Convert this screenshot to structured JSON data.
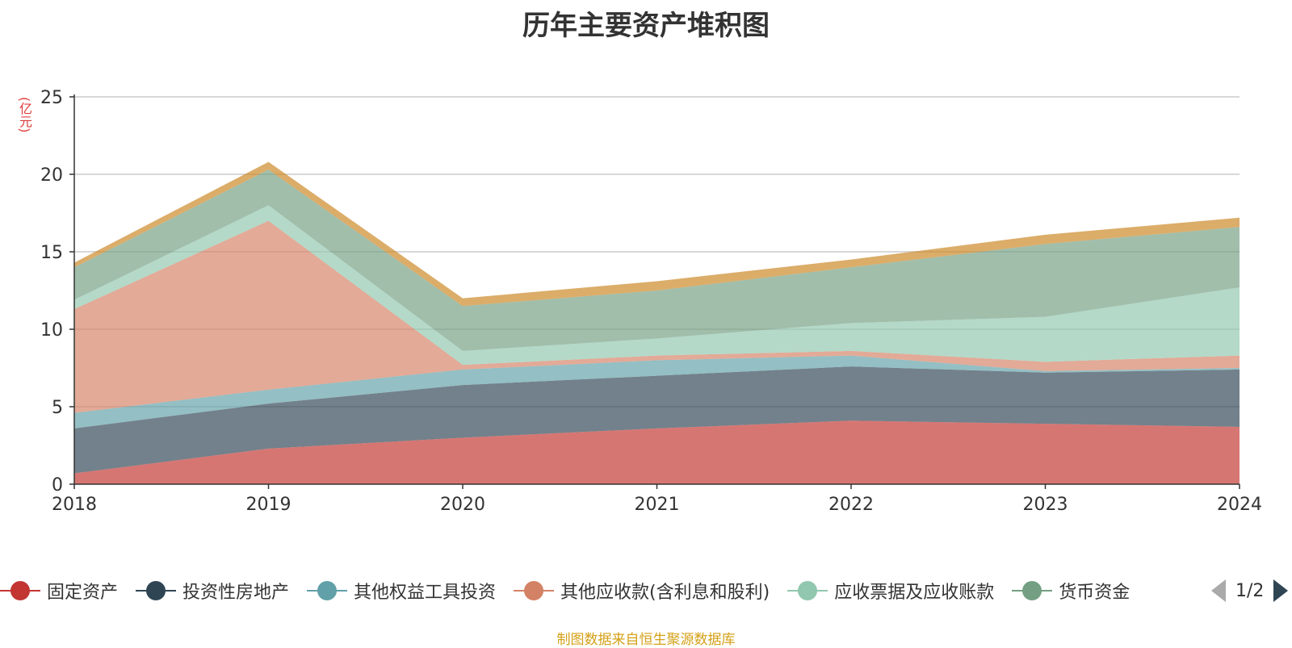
{
  "chart_data": {
    "type": "area",
    "stacked": true,
    "title": "历年主要资产堆积图",
    "unit_label": "(亿元)",
    "x": [
      "2018",
      "2019",
      "2020",
      "2021",
      "2022",
      "2023",
      "2024"
    ],
    "ylim": [
      0,
      25
    ],
    "yticks": [
      0,
      5,
      10,
      15,
      20,
      25
    ],
    "grid": true,
    "legend_position": "bottom",
    "series": [
      {
        "name": "固定资产",
        "color": "#c23531",
        "values": [
          0.7,
          2.3,
          3.0,
          3.6,
          4.1,
          3.9,
          3.7
        ]
      },
      {
        "name": "投资性房地产",
        "color": "#2f4554",
        "values": [
          2.9,
          2.9,
          3.4,
          3.4,
          3.5,
          3.3,
          3.7
        ]
      },
      {
        "name": "其他权益工具投资",
        "color": "#61a0a8",
        "values": [
          1.0,
          0.9,
          1.0,
          1.0,
          0.7,
          0.1,
          0.1
        ]
      },
      {
        "name": "其他应收款(含利息和股利)",
        "color": "#d48265",
        "values": [
          6.7,
          10.9,
          0.3,
          0.3,
          0.3,
          0.6,
          0.8
        ]
      },
      {
        "name": "应收票据及应收账款",
        "color": "#91c7ae",
        "values": [
          0.6,
          1.0,
          0.9,
          1.1,
          1.8,
          2.9,
          4.4
        ]
      },
      {
        "name": "货币资金",
        "color": "#749f83",
        "values": [
          2.1,
          2.3,
          2.9,
          3.1,
          3.6,
          4.7,
          3.9
        ]
      },
      {
        "name": "",
        "color": "#ca8622",
        "values": [
          0.3,
          0.5,
          0.5,
          0.6,
          0.5,
          0.6,
          0.6
        ]
      }
    ],
    "legend_visible_count": 6
  },
  "legend": {
    "labels": [
      "固定资产",
      "投资性房地产",
      "其他权益工具投资",
      "其他应收款(含利息和股利)",
      "应收票据及应收账款",
      "货币资金"
    ],
    "page_text": "1/2"
  },
  "footer": {
    "source": "制图数据来自恒生聚源数据库"
  }
}
